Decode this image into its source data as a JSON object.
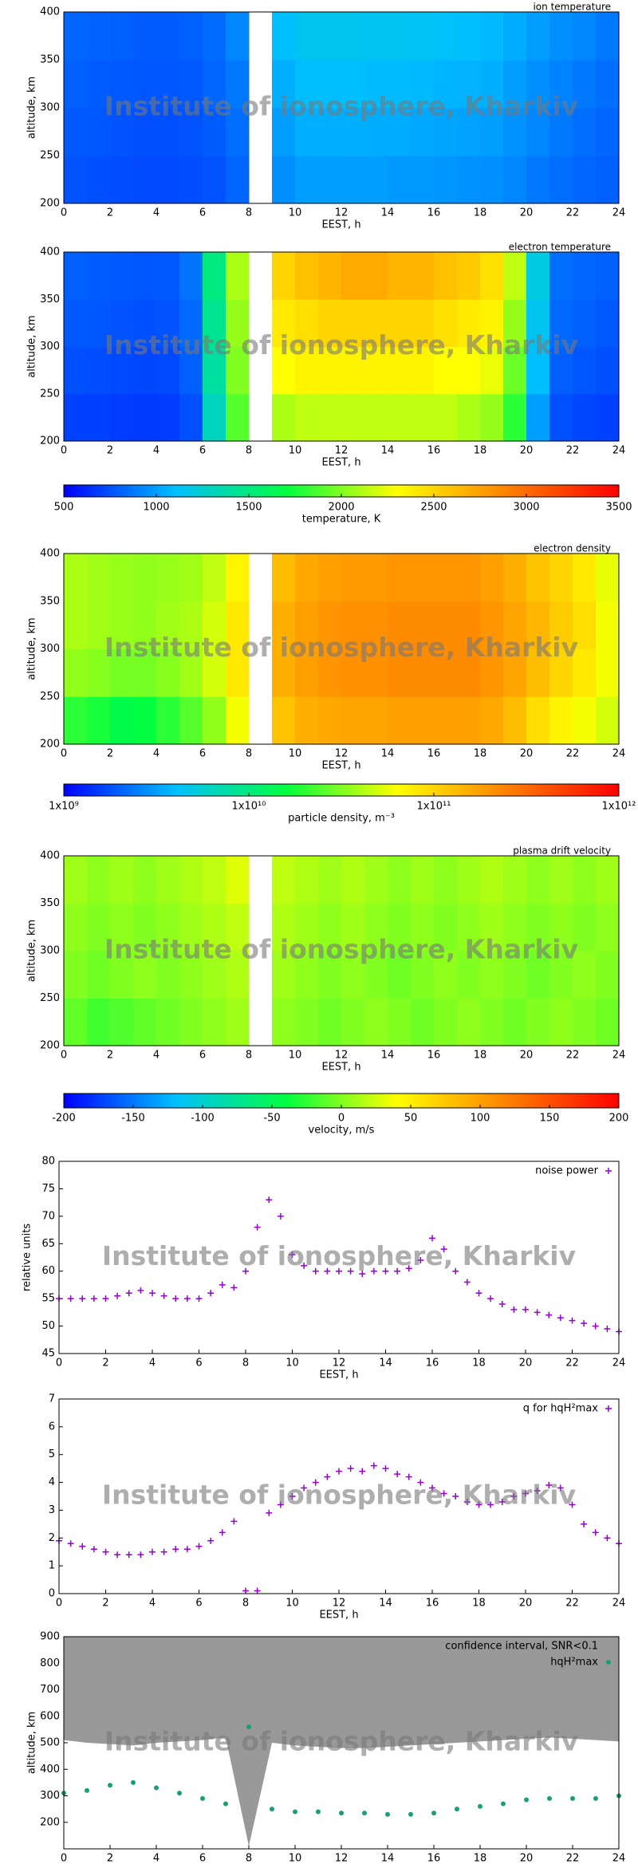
{
  "chart_data": [
    {
      "type": "heatmap",
      "title": "ion temperature",
      "x_label": "EEST, h",
      "y_label": "altitude, km",
      "watermark": "Institute of ionosphere, Kharkiv",
      "xlim": [
        0,
        24
      ],
      "xticks": [
        0,
        2,
        4,
        6,
        8,
        10,
        12,
        14,
        16,
        18,
        20,
        22,
        24
      ],
      "ylim": [
        200,
        400
      ],
      "yticks": [
        200,
        250,
        300,
        350,
        400
      ],
      "x": [
        0.5,
        1.5,
        2.5,
        3.5,
        4.5,
        5.5,
        6.5,
        7.5,
        8.5,
        9.5,
        10.5,
        11.5,
        12.5,
        13.5,
        14.5,
        15.5,
        16.5,
        17.5,
        18.5,
        19.5,
        20.5,
        21.5,
        22.5,
        23.5
      ],
      "y": [
        225,
        275,
        325,
        375
      ],
      "z": [
        [
          760,
          750,
          740,
          730,
          730,
          740,
          760,
          820,
          null,
          950,
          1000,
          1000,
          1000,
          1000,
          980,
          980,
          970,
          960,
          950,
          920,
          880,
          850,
          820,
          800
        ],
        [
          780,
          770,
          760,
          750,
          750,
          760,
          790,
          850,
          null,
          1000,
          1050,
          1050,
          1050,
          1040,
          1040,
          1030,
          1020,
          1010,
          1000,
          960,
          920,
          880,
          850,
          820
        ],
        [
          800,
          790,
          780,
          770,
          770,
          780,
          820,
          880,
          null,
          1050,
          1100,
          1100,
          1100,
          1090,
          1090,
          1080,
          1070,
          1060,
          1050,
          1000,
          950,
          910,
          880,
          850
        ],
        [
          820,
          810,
          800,
          790,
          790,
          800,
          840,
          920,
          null,
          1100,
          1150,
          1150,
          1150,
          1140,
          1140,
          1130,
          1120,
          1100,
          1080,
          1040,
          990,
          950,
          920,
          880
        ]
      ]
    },
    {
      "type": "heatmap",
      "title": "electron temperature",
      "x_label": "EEST, h",
      "y_label": "altitude, km",
      "watermark": "Institute of ionosphere, Kharkiv",
      "xlim": [
        0,
        24
      ],
      "xticks": [
        0,
        2,
        4,
        6,
        8,
        10,
        12,
        14,
        16,
        18,
        20,
        22,
        24
      ],
      "ylim": [
        200,
        400
      ],
      "yticks": [
        200,
        250,
        300,
        350,
        400
      ],
      "x": [
        0.5,
        1.5,
        2.5,
        3.5,
        4.5,
        5.5,
        6.5,
        7.5,
        8.5,
        9.5,
        10.5,
        11.5,
        12.5,
        13.5,
        14.5,
        15.5,
        16.5,
        17.5,
        18.5,
        19.5,
        20.5,
        21.5,
        22.5,
        23.5
      ],
      "y": [
        225,
        275,
        325,
        375
      ],
      "z": [
        [
          700,
          700,
          690,
          680,
          690,
          750,
          1300,
          1900,
          null,
          2100,
          2150,
          2150,
          2150,
          2150,
          2150,
          2150,
          2150,
          2100,
          2050,
          1800,
          1000,
          750,
          720,
          700
        ],
        [
          750,
          740,
          730,
          720,
          730,
          800,
          1400,
          2000,
          null,
          2300,
          2350,
          2350,
          2350,
          2350,
          2350,
          2350,
          2300,
          2300,
          2250,
          1950,
          1100,
          800,
          770,
          750
        ],
        [
          780,
          770,
          760,
          750,
          760,
          830,
          1450,
          2050,
          null,
          2400,
          2450,
          2500,
          2500,
          2500,
          2500,
          2500,
          2450,
          2400,
          2350,
          2050,
          1150,
          830,
          800,
          780
        ],
        [
          800,
          790,
          780,
          770,
          780,
          860,
          1500,
          2100,
          null,
          2500,
          2600,
          2650,
          2700,
          2700,
          2650,
          2650,
          2600,
          2550,
          2450,
          2150,
          1200,
          850,
          820,
          800
        ]
      ]
    },
    {
      "type": "colorbar",
      "label": "temperature, K",
      "xlim": [
        500,
        3500
      ],
      "xticks": [
        500,
        1000,
        1500,
        2000,
        2500,
        3000,
        3500
      ],
      "colors": [
        "#0000ff",
        "#00bfff",
        "#00ff40",
        "#ffff00",
        "#ff8000",
        "#ff0000"
      ]
    },
    {
      "type": "heatmap",
      "title": "electron density",
      "x_label": "EEST, h",
      "y_label": "altitude, km",
      "watermark": "Institute of ionosphere, Kharkiv",
      "xlim": [
        0,
        24
      ],
      "xticks": [
        0,
        2,
        4,
        6,
        8,
        10,
        12,
        14,
        16,
        18,
        20,
        22,
        24
      ],
      "ylim": [
        200,
        400
      ],
      "yticks": [
        200,
        250,
        300,
        350,
        400
      ],
      "x": [
        0.5,
        1.5,
        2.5,
        3.5,
        4.5,
        5.5,
        6.5,
        7.5,
        8.5,
        9.5,
        10.5,
        11.5,
        12.5,
        13.5,
        14.5,
        15.5,
        16.5,
        17.5,
        18.5,
        19.5,
        20.5,
        21.5,
        22.5,
        23.5
      ],
      "y": [
        225,
        275,
        325,
        375
      ],
      "z": [
        [
          20000000000.0,
          18000000000.0,
          15000000000.0,
          16000000000.0,
          20000000000.0,
          25000000000.0,
          35000000000.0,
          60000000000.0,
          null,
          120000000000.0,
          150000000000.0,
          160000000000.0,
          170000000000.0,
          170000000000.0,
          180000000000.0,
          180000000000.0,
          180000000000.0,
          180000000000.0,
          160000000000.0,
          130000000000.0,
          90000000000.0,
          70000000000.0,
          60000000000.0,
          50000000000.0
        ],
        [
          35000000000.0,
          33000000000.0,
          30000000000.0,
          30000000000.0,
          33000000000.0,
          38000000000.0,
          50000000000.0,
          80000000000.0,
          null,
          150000000000.0,
          180000000000.0,
          200000000000.0,
          210000000000.0,
          210000000000.0,
          220000000000.0,
          220000000000.0,
          220000000000.0,
          220000000000.0,
          200000000000.0,
          170000000000.0,
          130000000000.0,
          100000000000.0,
          80000000000.0,
          60000000000.0
        ],
        [
          40000000000.0,
          38000000000.0,
          36000000000.0,
          35000000000.0,
          38000000000.0,
          40000000000.0,
          50000000000.0,
          80000000000.0,
          null,
          150000000000.0,
          180000000000.0,
          200000000000.0,
          210000000000.0,
          210000000000.0,
          220000000000.0,
          220000000000.0,
          220000000000.0,
          220000000000.0,
          200000000000.0,
          170000000000.0,
          140000000000.0,
          110000000000.0,
          90000000000.0,
          60000000000.0
        ],
        [
          40000000000.0,
          38000000000.0,
          36000000000.0,
          35000000000.0,
          36000000000.0,
          38000000000.0,
          45000000000.0,
          70000000000.0,
          null,
          130000000000.0,
          160000000000.0,
          180000000000.0,
          190000000000.0,
          190000000000.0,
          200000000000.0,
          200000000000.0,
          200000000000.0,
          200000000000.0,
          180000000000.0,
          150000000000.0,
          120000000000.0,
          100000000000.0,
          80000000000.0,
          55000000000.0
        ]
      ]
    },
    {
      "type": "colorbar",
      "label": "particle density, m⁻³",
      "log_scale": true,
      "xlim": [
        1000000000.0,
        1000000000000.0
      ],
      "xticks": [
        {
          "value": 1000000000.0,
          "label": "1x10⁹"
        },
        {
          "value": 10000000000.0,
          "label": "1x10¹⁰"
        },
        {
          "value": 100000000000.0,
          "label": "1x10¹¹"
        },
        {
          "value": 1000000000000.0,
          "label": "1x10¹²"
        }
      ],
      "colors": [
        "#0000ff",
        "#00bfff",
        "#00ff40",
        "#ffff00",
        "#ff8000",
        "#ff0000"
      ]
    },
    {
      "type": "heatmap",
      "title": "plasma drift velocity",
      "x_label": "EEST, h",
      "y_label": "altitude, km",
      "watermark": "Institute of ionosphere, Kharkiv",
      "xlim": [
        0,
        24
      ],
      "xticks": [
        0,
        2,
        4,
        6,
        8,
        10,
        12,
        14,
        16,
        18,
        20,
        22,
        24
      ],
      "ylim": [
        200,
        400
      ],
      "yticks": [
        200,
        250,
        300,
        350,
        400
      ],
      "x": [
        0.5,
        1.5,
        2.5,
        3.5,
        4.5,
        5.5,
        6.5,
        7.5,
        8.5,
        9.5,
        10.5,
        11.5,
        12.5,
        13.5,
        14.5,
        15.5,
        16.5,
        17.5,
        18.5,
        19.5,
        20.5,
        21.5,
        22.5,
        23.5
      ],
      "y": [
        225,
        275,
        325,
        375
      ],
      "z": [
        [
          -10,
          -20,
          -15,
          -10,
          -5,
          0,
          5,
          10,
          null,
          5,
          0,
          -5,
          0,
          5,
          0,
          -5,
          0,
          5,
          0,
          -5,
          0,
          5,
          0,
          -5
        ],
        [
          0,
          -5,
          0,
          5,
          0,
          5,
          10,
          15,
          null,
          10,
          5,
          0,
          5,
          0,
          -5,
          0,
          5,
          0,
          5,
          0,
          -5,
          0,
          5,
          0
        ],
        [
          5,
          0,
          5,
          0,
          5,
          10,
          15,
          20,
          null,
          15,
          10,
          5,
          10,
          5,
          0,
          5,
          0,
          5,
          10,
          5,
          0,
          5,
          0,
          5
        ],
        [
          10,
          5,
          10,
          5,
          10,
          15,
          20,
          30,
          null,
          20,
          15,
          10,
          15,
          10,
          5,
          10,
          5,
          10,
          15,
          10,
          5,
          10,
          5,
          10
        ]
      ]
    },
    {
      "type": "colorbar",
      "label": "velocity, m/s",
      "xlim": [
        -200,
        200
      ],
      "xticks": [
        -200,
        -150,
        -100,
        -50,
        0,
        50,
        100,
        150,
        200
      ],
      "colors": [
        "#0000ff",
        "#00bfff",
        "#00ff40",
        "#ffff00",
        "#ff8000",
        "#ff0000"
      ]
    },
    {
      "type": "scatter",
      "x_label": "EEST, h",
      "y_label": "relative units",
      "watermark": "Institute of ionosphere, Kharkiv",
      "xlim": [
        0,
        24
      ],
      "xticks": [
        0,
        2,
        4,
        6,
        8,
        10,
        12,
        14,
        16,
        18,
        20,
        22,
        24
      ],
      "ylim": [
        45,
        80
      ],
      "yticks": [
        45,
        50,
        55,
        60,
        65,
        70,
        75,
        80
      ],
      "x": [
        0,
        0.5,
        1,
        1.5,
        2,
        2.5,
        3,
        3.5,
        4,
        4.5,
        5,
        5.5,
        6,
        6.5,
        7,
        7.5,
        8,
        8.5,
        9,
        9.5,
        10,
        10.5,
        11,
        11.5,
        12,
        12.5,
        13,
        13.5,
        14,
        14.5,
        15,
        15.5,
        16,
        16.5,
        17,
        17.5,
        18,
        18.5,
        19,
        19.5,
        20,
        20.5,
        21,
        21.5,
        22,
        22.5,
        23,
        23.5,
        24
      ],
      "series": [
        {
          "name": "noise power",
          "color": "#9400d3",
          "marker": "plus",
          "values": [
            55,
            55,
            55,
            55,
            55,
            55.5,
            56,
            56.5,
            56,
            55.5,
            55,
            55,
            55,
            56,
            57.5,
            57,
            60,
            68,
            73,
            70,
            63,
            61,
            60,
            60,
            60,
            60,
            59.5,
            60,
            60,
            60,
            60.5,
            62,
            66,
            64,
            60,
            58,
            56,
            55,
            54,
            53,
            53,
            52.5,
            52,
            51.5,
            51,
            50.5,
            50,
            49.5,
            49
          ]
        }
      ]
    },
    {
      "type": "scatter",
      "x_label": "EEST, h",
      "watermark": "Institute of ionosphere, Kharkiv",
      "xlim": [
        0,
        24
      ],
      "xticks": [
        0,
        2,
        4,
        6,
        8,
        10,
        12,
        14,
        16,
        18,
        20,
        22,
        24
      ],
      "ylim": [
        0,
        7
      ],
      "yticks": [
        0,
        1,
        2,
        3,
        4,
        5,
        6,
        7
      ],
      "x": [
        0,
        0.5,
        1,
        1.5,
        2,
        2.5,
        3,
        3.5,
        4,
        4.5,
        5,
        5.5,
        6,
        6.5,
        7,
        7.5,
        8,
        8.5,
        9,
        9.5,
        10,
        10.5,
        11,
        11.5,
        12,
        12.5,
        13,
        13.5,
        14,
        14.5,
        15,
        15.5,
        16,
        16.5,
        17,
        17.5,
        18,
        18.5,
        19,
        19.5,
        20,
        20.5,
        21,
        21.5,
        22,
        22.5,
        23,
        23.5,
        24
      ],
      "series": [
        {
          "name": "q for hqH²max",
          "color": "#9400d3",
          "marker": "plus",
          "values": [
            1.9,
            1.8,
            1.7,
            1.6,
            1.5,
            1.4,
            1.4,
            1.4,
            1.5,
            1.5,
            1.6,
            1.6,
            1.7,
            1.9,
            2.2,
            2.6,
            0.1,
            0.1,
            2.9,
            3.2,
            3.5,
            3.8,
            4,
            4.2,
            4.4,
            4.5,
            4.4,
            4.6,
            4.5,
            4.3,
            4.2,
            4,
            3.8,
            3.6,
            3.5,
            3.3,
            3.2,
            3.2,
            3.3,
            3.5,
            3.6,
            3.7,
            3.9,
            3.8,
            3.2,
            2.5,
            2.2,
            2,
            1.8
          ]
        }
      ]
    },
    {
      "type": "scatter",
      "x_label": "EEST, h",
      "y_label": "altitude, km",
      "watermark": "Institute of ionosphere, Kharkiv",
      "xlim": [
        0,
        24
      ],
      "xticks": [
        0,
        2,
        4,
        6,
        8,
        10,
        12,
        14,
        16,
        18,
        20,
        22,
        24
      ],
      "ylim": [
        100,
        900
      ],
      "yticks": [
        200,
        300,
        400,
        500,
        600,
        700,
        800,
        900
      ],
      "x": [
        0,
        1,
        2,
        3,
        4,
        5,
        6,
        7,
        8,
        9,
        10,
        11,
        12,
        13,
        14,
        15,
        16,
        17,
        18,
        19,
        20,
        21,
        22,
        23,
        24
      ],
      "series": [
        {
          "name": "confidence interval, SNR<0.1",
          "color": "#999999",
          "marker": "area",
          "values": [
            510,
            500,
            495,
            490,
            500,
            505,
            510,
            520,
            110,
            500,
            490,
            485,
            480,
            480,
            485,
            490,
            495,
            500,
            505,
            510,
            515,
            520,
            515,
            510,
            505
          ]
        },
        {
          "name": "hqH²max",
          "color": "#1a9e77",
          "marker": "dot",
          "values": [
            310,
            320,
            340,
            350,
            330,
            310,
            290,
            270,
            560,
            250,
            240,
            240,
            235,
            235,
            230,
            230,
            235,
            250,
            260,
            270,
            285,
            290,
            290,
            290,
            300
          ]
        }
      ]
    }
  ]
}
